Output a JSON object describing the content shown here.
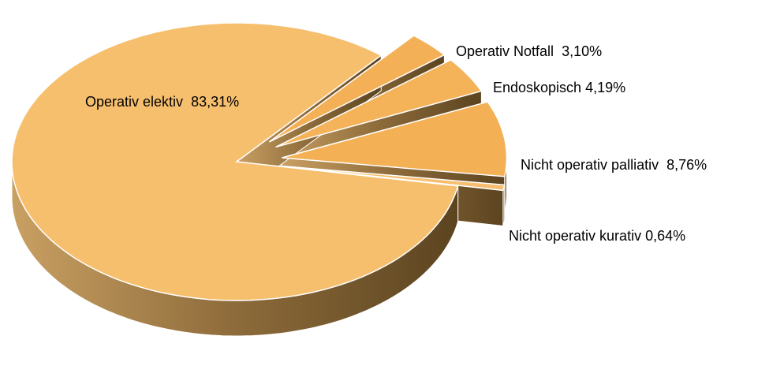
{
  "chart_data": {
    "type": "pie3d",
    "categories": [
      "Operativ Notfall",
      "Endoskopisch",
      "Nicht operativ palliativ",
      "Nicht operativ kurativ",
      "Operativ elektiv"
    ],
    "values": [
      3.1,
      4.19,
      8.76,
      0.64,
      83.31
    ],
    "value_labels": [
      "3,10%",
      "4,19%",
      "8,76%",
      "0,64%",
      "83,31%"
    ],
    "colors": [
      "#f4b056",
      "#f4b259",
      "#f4b054",
      "#f6be6e",
      "#f6bf6e"
    ],
    "side_color": "#8d6b3a"
  }
}
